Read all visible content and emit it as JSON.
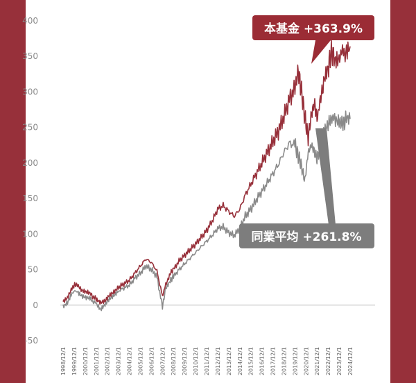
{
  "colors": {
    "background": "#97303a",
    "fund": "#97303a",
    "peer": "#8a8a8a",
    "fund_callout": "#9b2c35",
    "peer_callout": "#7d7d7d"
  },
  "chart_data": {
    "type": "line",
    "title": "",
    "xlabel": "",
    "ylabel": "",
    "ylim": [
      -50,
      400
    ],
    "yticks": [
      -50,
      0,
      50,
      100,
      150,
      200,
      250,
      300,
      350,
      400
    ],
    "xticks": [
      "1998/12/1",
      "1999/12/1",
      "2000/12/1",
      "2001/12/1",
      "2002/12/1",
      "2003/12/1",
      "2004/12/1",
      "2005/12/1",
      "2006/12/1",
      "2007/12/1",
      "2008/12/1",
      "2009/12/1",
      "2010/12/1",
      "2011/12/1",
      "2012/12/1",
      "2013/12/1",
      "2014/12/1",
      "2015/12/1",
      "2016/12/1",
      "2017/12/1",
      "2018/12/1",
      "2019/12/1",
      "2020/12/1",
      "2021/12/1",
      "2022/12/1",
      "2023/12/1",
      "2024/12/1"
    ],
    "grid": false,
    "zero_line": true,
    "series": [
      {
        "name": "本基金",
        "label": "本基金 +363.9%",
        "x": [
          0,
          0.4,
          0.8,
          1.3,
          1.7,
          2.1,
          2.5,
          3.0,
          3.4,
          3.8,
          4.2,
          4.6,
          5.0,
          5.5,
          6.0,
          6.5,
          7.0,
          7.5,
          8.0,
          8.5,
          9.0,
          9.3,
          9.7,
          10.0,
          10.5,
          11.0,
          11.5,
          12.0,
          12.5,
          13.0,
          13.5,
          14.0,
          14.5,
          15.0,
          15.5,
          16.0,
          16.5,
          17.0,
          17.5,
          18.0,
          18.5,
          19.0,
          19.5,
          20.0,
          20.5,
          21.0,
          21.3,
          21.6,
          21.9,
          22.2,
          22.5,
          22.8,
          23.0,
          23.3,
          23.6,
          24.0,
          24.3,
          24.6,
          25.0,
          25.3,
          25.6,
          26.0
        ],
        "values": [
          5,
          12,
          25,
          30,
          22,
          18,
          15,
          8,
          2,
          5,
          15,
          20,
          25,
          30,
          35,
          45,
          55,
          65,
          60,
          48,
          12,
          30,
          45,
          50,
          62,
          70,
          78,
          86,
          95,
          105,
          118,
          135,
          140,
          132,
          125,
          135,
          155,
          170,
          185,
          200,
          215,
          230,
          245,
          265,
          290,
          305,
          330,
          300,
          265,
          235,
          270,
          285,
          260,
          290,
          310,
          335,
          355,
          350,
          345,
          360,
          350,
          364
        ]
      },
      {
        "name": "同業平均",
        "label": "同業平均 +261.8%",
        "x": [
          0,
          0.4,
          0.8,
          1.3,
          1.7,
          2.1,
          2.5,
          3.0,
          3.4,
          3.8,
          4.2,
          4.6,
          5.0,
          5.5,
          6.0,
          6.5,
          7.0,
          7.5,
          8.0,
          8.5,
          9.0,
          9.3,
          9.7,
          10.0,
          10.5,
          11.0,
          11.5,
          12.0,
          12.5,
          13.0,
          13.5,
          14.0,
          14.5,
          15.0,
          15.5,
          16.0,
          16.5,
          17.0,
          17.5,
          18.0,
          18.5,
          19.0,
          19.5,
          20.0,
          20.5,
          21.0,
          21.3,
          21.6,
          21.9,
          22.2,
          22.5,
          22.8,
          23.0,
          23.3,
          23.6,
          24.0,
          24.3,
          24.6,
          25.0,
          25.3,
          25.6,
          26.0
        ],
        "values": [
          -2,
          5,
          18,
          20,
          14,
          10,
          8,
          2,
          -8,
          0,
          10,
          15,
          20,
          24,
          28,
          38,
          45,
          55,
          50,
          40,
          -3,
          25,
          35,
          40,
          50,
          58,
          66,
          74,
          82,
          90,
          98,
          108,
          110,
          102,
          98,
          108,
          125,
          135,
          148,
          160,
          172,
          185,
          198,
          215,
          228,
          225,
          210,
          195,
          175,
          215,
          225,
          215,
          205,
          225,
          240,
          255,
          262,
          265,
          258,
          255,
          260,
          262
        ]
      }
    ]
  }
}
